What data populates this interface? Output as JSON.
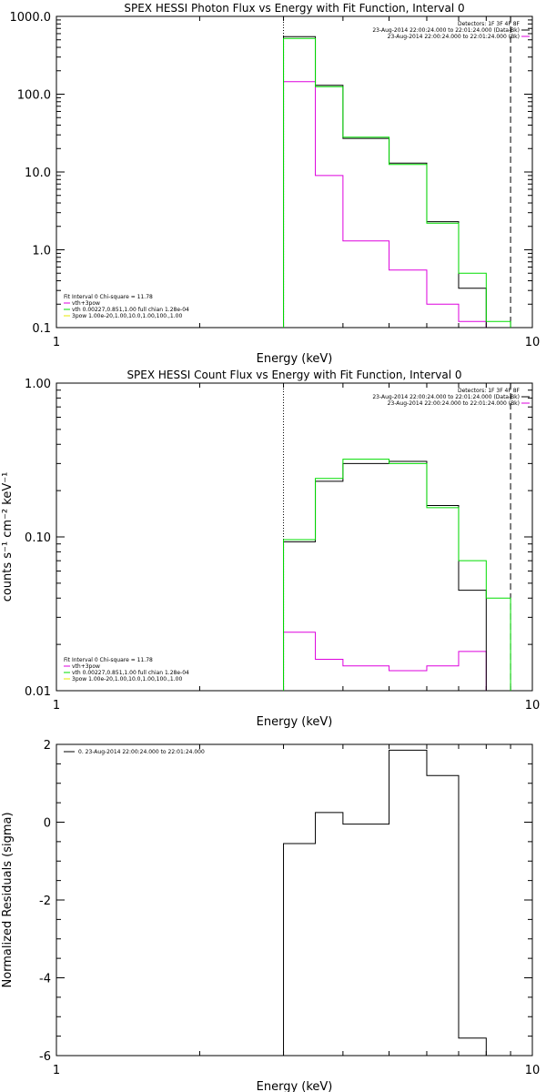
{
  "colors": {
    "data": "#000000",
    "total": "#00dd00",
    "nonthermal": "#dd00dd",
    "thermal": "#00dd00",
    "extra": "#e8e800"
  },
  "chart_data": [
    {
      "type": "line",
      "title": "SPEX HESSI Photon Flux vs Energy with Fit Function, Interval 0",
      "xlabel": "Energy (keV)",
      "ylabel": "",
      "xscale": "log",
      "yscale": "log",
      "xlim": [
        1,
        10
      ],
      "ylim": [
        0.1,
        1000
      ],
      "xticks": [
        1,
        10
      ],
      "xtick_labels": [
        "1",
        "10"
      ],
      "yticks": [
        0.1,
        1,
        10,
        100,
        1000
      ],
      "ytick_labels": [
        "0.1",
        "1.0",
        "10.0",
        "100.0",
        "1000.0"
      ],
      "vlines": [
        {
          "x": 3.0,
          "style": "dotted"
        },
        {
          "x": 9.0,
          "style": "dashed"
        }
      ],
      "edges": [
        3.0,
        3.5,
        4.0,
        5.0,
        6.0,
        7.0,
        8.0,
        9.0,
        10.0
      ],
      "series": [
        {
          "key": "data",
          "color": "#000000",
          "values": [
            550,
            130,
            27,
            13,
            2.3,
            0.32,
            null,
            null
          ]
        },
        {
          "key": "total",
          "color": "#00dd00",
          "values": [
            520,
            125,
            28,
            12.5,
            2.2,
            0.5,
            0.12,
            null
          ]
        },
        {
          "key": "nonthermal",
          "color": "#dd00dd",
          "values": [
            145,
            9,
            1.3,
            0.55,
            0.2,
            0.12,
            null,
            null
          ]
        }
      ],
      "legend_top": {
        "lines": [
          "Detectors: 1F 3F 4F 8F",
          "23-Aug-2014 22:00:24.000 to 22:01:24.000 (Data-Bk)",
          "23-Aug-2014 22:00:24.000 to 22:01:24.000 (Bk)"
        ],
        "colors": [
          "#000000",
          "#000000",
          "#dd00dd"
        ]
      },
      "legend_bottom": {
        "lines": [
          "Fit Interval 0   Chi-square = 11.78",
          "vth+3pow",
          "vth 0.00227,0.851,1.00  full chian 1.28e-04",
          "3pow 1.00e-20,1.00,10.0,1.00,100.,1.00"
        ],
        "colors": [
          "#000000",
          "#dd00dd",
          "#00dd00",
          "#e8e800"
        ]
      }
    },
    {
      "type": "line",
      "title": "SPEX HESSI Count Flux vs Energy with Fit Function, Interval 0",
      "xlabel": "Energy (keV)",
      "ylabel": "counts s⁻¹ cm⁻² keV⁻¹",
      "xscale": "log",
      "yscale": "log",
      "xlim": [
        1,
        10
      ],
      "ylim": [
        0.01,
        1
      ],
      "xticks": [
        1,
        10
      ],
      "xtick_labels": [
        "1",
        "10"
      ],
      "yticks": [
        0.01,
        0.1,
        1
      ],
      "ytick_labels": [
        "0.01",
        "0.10",
        "1.00"
      ],
      "vlines": [
        {
          "x": 3.0,
          "style": "dotted"
        },
        {
          "x": 9.0,
          "style": "dashed"
        }
      ],
      "edges": [
        3.0,
        3.5,
        4.0,
        5.0,
        6.0,
        7.0,
        8.0,
        9.0,
        10.0
      ],
      "series": [
        {
          "key": "data",
          "color": "#000000",
          "values": [
            0.093,
            0.23,
            0.3,
            0.31,
            0.16,
            0.045,
            null,
            null
          ]
        },
        {
          "key": "total",
          "color": "#00dd00",
          "values": [
            0.096,
            0.24,
            0.32,
            0.3,
            0.155,
            0.07,
            0.04,
            null
          ]
        },
        {
          "key": "nonthermal",
          "color": "#dd00dd",
          "values": [
            0.024,
            0.016,
            0.0145,
            0.0135,
            0.0145,
            0.018,
            null,
            null
          ]
        }
      ],
      "legend_top": {
        "lines": [
          "Detectors: 1F 3F 4F 8F",
          "23-Aug-2014 22:00:24.000 to 22:01:24.000 (Data-Bk)",
          "23-Aug-2014 22:00:24.000 to 22:01:24.000 (Bk)"
        ],
        "colors": [
          "#000000",
          "#000000",
          "#dd00dd"
        ]
      },
      "legend_bottom": {
        "lines": [
          "Fit Interval 0   Chi-square = 11.78",
          "vth+3pow",
          "vth 0.00227,0.851,1.00  full chian 1.28e-04",
          "3pow 1.00e-20,1.00,10.0,1.00,100.,1.00"
        ],
        "colors": [
          "#000000",
          "#dd00dd",
          "#00dd00",
          "#e8e800"
        ]
      }
    },
    {
      "type": "line",
      "title": "",
      "xlabel": "Energy (keV)",
      "ylabel": "Normalized Residuals (sigma)",
      "xscale": "log",
      "yscale": "linear",
      "xlim": [
        1,
        10
      ],
      "ylim": [
        -6,
        2
      ],
      "xticks": [
        1,
        10
      ],
      "xtick_labels": [
        "1",
        "10"
      ],
      "yticks": [
        -6,
        -4,
        -2,
        0,
        2
      ],
      "ytick_labels": [
        "-6",
        "-4",
        "-2",
        "0",
        "2"
      ],
      "vlines": [],
      "edges": [
        3.0,
        3.5,
        4.0,
        5.0,
        6.0,
        7.0,
        8.0,
        9.0,
        10.0
      ],
      "series": [
        {
          "key": "residuals",
          "color": "#000000",
          "values": [
            -0.55,
            0.25,
            -0.05,
            1.85,
            1.2,
            -5.55,
            null,
            null
          ],
          "drop_first_to_axis": true
        }
      ],
      "legend_top": {
        "lines": [
          "0. 23-Aug-2014 22:00:24.000 to 22:01:24.000"
        ],
        "colors": [
          "#000000"
        ]
      },
      "legend_bottom": {
        "lines": [],
        "colors": []
      }
    }
  ]
}
